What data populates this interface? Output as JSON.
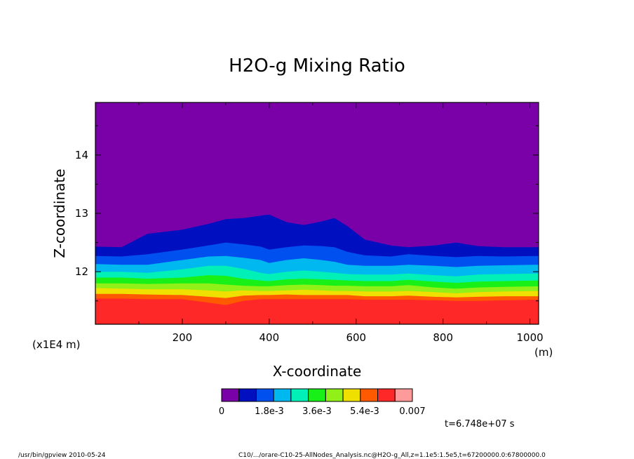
{
  "chart_data": {
    "type": "heatmap",
    "title": "H2O-g Mixing Ratio",
    "xlabel": "X-coordinate",
    "ylabel": "Z-coordinate",
    "x_unit": "(m)",
    "y_unit": "(x1E4 m)",
    "xlim": [
      0,
      1020
    ],
    "ylim": [
      11.1,
      14.9
    ],
    "x_ticks": [
      200,
      400,
      600,
      800,
      1000
    ],
    "y_ticks": [
      12,
      13,
      14
    ],
    "colorbar": {
      "colors": [
        "#7a00a8",
        "#0010c0",
        "#0050f0",
        "#00b8f0",
        "#00f0b8",
        "#18f018",
        "#90f018",
        "#f0e000",
        "#ff5a00",
        "#ff2828",
        "#ff9a9a"
      ],
      "tick_labels": [
        "0",
        "1.8e-3",
        "3.6e-3",
        "5.4e-3",
        "0.007"
      ]
    },
    "contour_levels": {
      "x": [
        0,
        60,
        120,
        200,
        260,
        300,
        340,
        380,
        400,
        440,
        480,
        520,
        550,
        580,
        620,
        680,
        720,
        780,
        830,
        880,
        940,
        1020
      ],
      "levels": [
        {
          "name": "0.00063",
          "z": [
            12.43,
            12.42,
            12.65,
            12.72,
            12.82,
            12.9,
            12.92,
            12.96,
            12.98,
            12.85,
            12.8,
            12.86,
            12.92,
            12.78,
            12.55,
            12.45,
            12.42,
            12.45,
            12.5,
            12.44,
            12.42,
            12.42
          ]
        },
        {
          "name": "0.0013",
          "z": [
            12.27,
            12.26,
            12.3,
            12.38,
            12.45,
            12.5,
            12.47,
            12.43,
            12.38,
            12.42,
            12.45,
            12.44,
            12.42,
            12.34,
            12.28,
            12.26,
            12.3,
            12.27,
            12.25,
            12.27,
            12.26,
            12.27
          ]
        },
        {
          "name": "0.0019",
          "z": [
            12.13,
            12.12,
            12.12,
            12.2,
            12.26,
            12.27,
            12.24,
            12.2,
            12.15,
            12.2,
            12.23,
            12.2,
            12.17,
            12.12,
            12.1,
            12.1,
            12.12,
            12.1,
            12.08,
            12.1,
            12.11,
            12.12
          ]
        },
        {
          "name": "0.0026",
          "z": [
            12.0,
            12.0,
            11.98,
            12.04,
            12.1,
            12.1,
            12.05,
            11.98,
            11.96,
            12.0,
            12.02,
            12.0,
            11.98,
            11.96,
            11.95,
            11.95,
            11.97,
            11.94,
            11.92,
            11.95,
            11.96,
            11.97
          ]
        },
        {
          "name": "0.0032",
          "z": [
            11.9,
            11.9,
            11.88,
            11.9,
            11.94,
            11.93,
            11.88,
            11.85,
            11.84,
            11.87,
            11.88,
            11.87,
            11.86,
            11.85,
            11.84,
            11.84,
            11.86,
            11.83,
            11.81,
            11.83,
            11.84,
            11.85
          ]
        },
        {
          "name": "0.0038",
          "z": [
            11.8,
            11.8,
            11.79,
            11.8,
            11.8,
            11.78,
            11.76,
            11.75,
            11.75,
            11.77,
            11.78,
            11.77,
            11.76,
            11.76,
            11.75,
            11.75,
            11.77,
            11.73,
            11.71,
            11.73,
            11.74,
            11.75
          ]
        },
        {
          "name": "0.0045",
          "z": [
            11.72,
            11.71,
            11.7,
            11.7,
            11.68,
            11.66,
            11.68,
            11.67,
            11.67,
            11.68,
            11.69,
            11.68,
            11.67,
            11.67,
            11.66,
            11.66,
            11.67,
            11.65,
            11.63,
            11.65,
            11.66,
            11.67
          ]
        },
        {
          "name": "0.0051",
          "z": [
            11.62,
            11.62,
            11.61,
            11.6,
            11.57,
            11.55,
            11.59,
            11.6,
            11.6,
            11.61,
            11.6,
            11.6,
            11.6,
            11.6,
            11.58,
            11.58,
            11.59,
            11.57,
            11.56,
            11.57,
            11.58,
            11.58
          ]
        },
        {
          "name": "0.0057",
          "z": [
            11.54,
            11.54,
            11.53,
            11.53,
            11.47,
            11.43,
            11.5,
            11.53,
            11.53,
            11.53,
            11.53,
            11.53,
            11.53,
            11.53,
            11.52,
            11.52,
            11.52,
            11.51,
            11.5,
            11.5,
            11.51,
            11.52
          ]
        }
      ]
    },
    "annotations": [
      "t=6.748e+07 s"
    ]
  },
  "footer": {
    "left": "/usr/bin/gpview   2010-05-24",
    "right": "C10/.../orare-C10-25-AllNodes_Analysis.nc@H2O-g_All,z=1.1e5:1.5e5,t=67200000.0:67800000.0"
  }
}
